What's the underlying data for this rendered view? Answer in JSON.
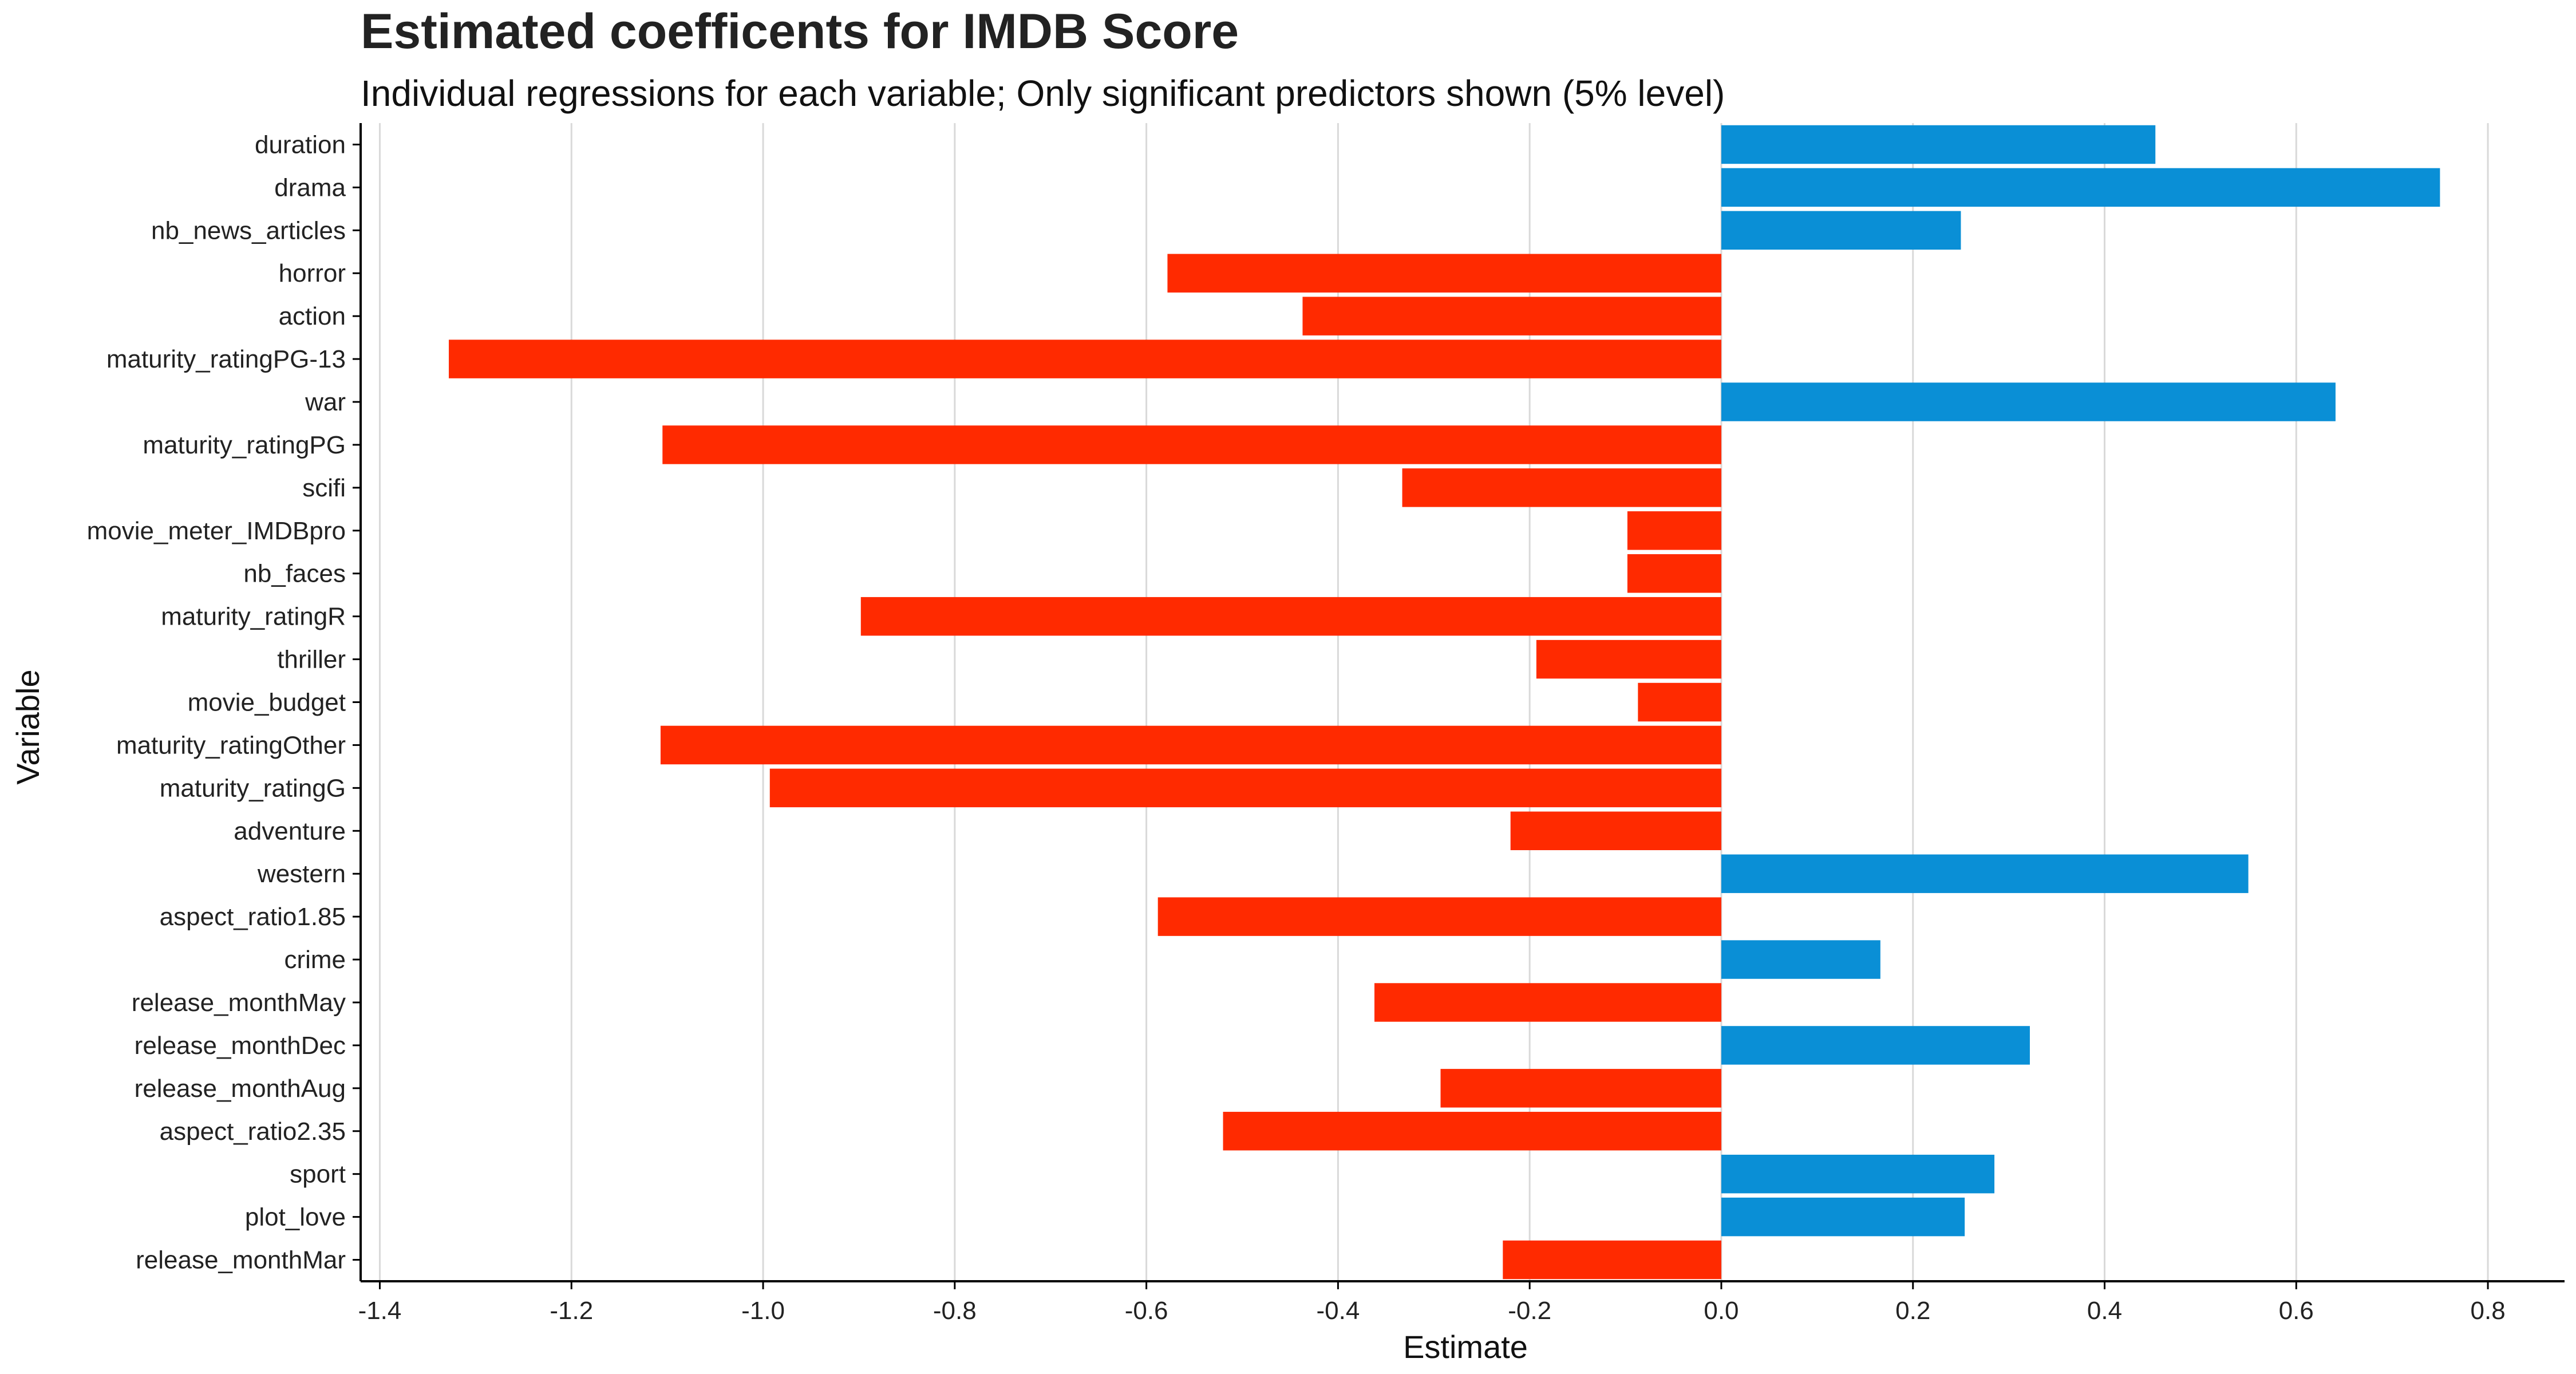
{
  "chart_data": {
    "type": "bar",
    "orientation": "horizontal",
    "title": "Estimated coefficents for IMDB Score",
    "subtitle": "Individual regressions for each variable; Only significant predictors shown (5% level)",
    "xlabel": "Estimate",
    "ylabel": "Variable",
    "xlim": [
      -1.42,
      0.88
    ],
    "x_ticks": [
      -1.4,
      -1.2,
      -1.0,
      -0.8,
      -0.6,
      -0.4,
      -0.2,
      0.0,
      0.2,
      0.4,
      0.6,
      0.8
    ],
    "x_tick_labels": [
      "-1.4",
      "-1.2",
      "-1.0",
      "-0.8",
      "-0.6",
      "-0.4",
      "-0.2",
      "0.0",
      "0.2",
      "0.4",
      "0.6",
      "0.8"
    ],
    "grid": "vertical major gridlines",
    "legend": "none",
    "colors": {
      "positive": "#0a8fd6",
      "negative": "#ff2a00",
      "grid": "#d9d9d9",
      "axis": "#000000"
    },
    "categories": [
      "duration",
      "drama",
      "nb_news_articles",
      "horror",
      "action",
      "maturity_ratingPG-13",
      "war",
      "maturity_ratingPG",
      "scifi",
      "movie_meter_IMDBpro",
      "nb_faces",
      "maturity_ratingR",
      "thriller",
      "movie_budget",
      "maturity_ratingOther",
      "maturity_ratingG",
      "adventure",
      "western",
      "aspect_ratio1.85",
      "crime",
      "release_monthMay",
      "release_monthDec",
      "release_monthAug",
      "aspect_ratio2.35",
      "sport",
      "plot_love",
      "release_monthMar"
    ],
    "values": [
      0.453,
      0.75,
      0.25,
      -0.578,
      -0.437,
      -1.328,
      0.641,
      -1.105,
      -0.333,
      -0.098,
      -0.098,
      -0.898,
      -0.193,
      -0.087,
      -1.107,
      -0.993,
      -0.22,
      0.55,
      -0.588,
      0.166,
      -0.362,
      0.322,
      -0.293,
      -0.52,
      0.285,
      0.254,
      -0.228
    ]
  }
}
